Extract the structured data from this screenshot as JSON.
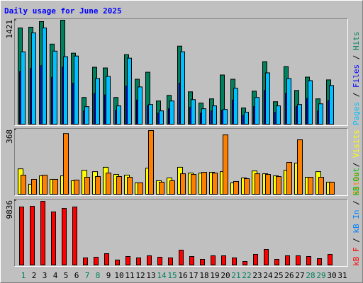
{
  "chart_data": [
    {
      "type": "bar",
      "title": "Daily usage for June 2025",
      "ylim": [
        0,
        1421
      ],
      "series": [
        {
          "name": "Hits",
          "color": "#00805c",
          "values": [
            1315,
            1325,
            1402,
            1094,
            1421,
            970,
            365,
            778,
            768,
            365,
            950,
            614,
            710,
            317,
            394,
            1066,
            442,
            288,
            346,
            672,
            614,
            221,
            451,
            854,
            307,
            787,
            461,
            643,
            346,
            605,
            null
          ]
        },
        {
          "name": "Files",
          "color": "#0000ff",
          "values": [
            720,
            760,
            800,
            640,
            780,
            560,
            180,
            420,
            400,
            190,
            520,
            330,
            250,
            150,
            210,
            560,
            230,
            150,
            180,
            190,
            330,
            120,
            240,
            460,
            160,
            420,
            240,
            350,
            180,
            320,
            null
          ]
        },
        {
          "name": "Pages",
          "color": "#00c0ff",
          "values": [
            989,
            1248,
            1315,
            998,
            922,
            931,
            240,
            624,
            653,
            250,
            902,
            509,
            269,
            182,
            317,
            989,
            336,
            211,
            250,
            202,
            490,
            163,
            365,
            701,
            250,
            624,
            269,
            595,
            278,
            528,
            null
          ]
        }
      ]
    },
    {
      "type": "bar",
      "ylim": [
        0,
        368
      ],
      "series": [
        {
          "name": "Visits",
          "color": "#ffff00",
          "values": [
            145,
            57,
            105,
            85,
            105,
            77,
            137,
            129,
            154,
            113,
            109,
            65,
            149,
            77,
            93,
            154,
            121,
            121,
            125,
            129,
            65,
            93,
            133,
            117,
            105,
            137,
            178,
            97,
            129,
            69,
            null
          ]
        },
        {
          "name": "Sites",
          "color": "#ff8000",
          "values": [
            109,
            85,
            109,
            85,
            347,
            81,
            97,
            101,
            121,
            101,
            97,
            65,
            364,
            69,
            77,
            117,
            113,
            125,
            121,
            339,
            73,
            89,
            117,
            113,
            101,
            182,
            311,
            97,
            97,
            69,
            null
          ]
        }
      ]
    },
    {
      "type": "bar",
      "ylim": [
        0,
        9836
      ],
      "categories": [
        "1",
        "2",
        "3",
        "4",
        "5",
        "6",
        "7",
        "8",
        "9",
        "10",
        "11",
        "12",
        "13",
        "14",
        "15",
        "16",
        "17",
        "18",
        "19",
        "20",
        "21",
        "22",
        "23",
        "24",
        "25",
        "26",
        "27",
        "28",
        "29",
        "30",
        "31"
      ],
      "weekend_days": [
        "1",
        "7",
        "8",
        "14",
        "15",
        "21",
        "22",
        "28",
        "29"
      ],
      "weekend_color": "#00805c",
      "series": [
        {
          "name": "kB F",
          "color": "#ff0000",
          "values": [
            8856,
            8964,
            9720,
            8100,
            8640,
            8856,
            1080,
            1188,
            1728,
            756,
            1296,
            1080,
            1404,
            1188,
            1080,
            2268,
            1296,
            864,
            1404,
            1404,
            1080,
            540,
            1620,
            2376,
            864,
            1404,
            1404,
            1296,
            972,
            1620,
            null
          ]
        }
      ],
      "extra_legend": [
        {
          "name": "kB In",
          "color": "#0080ff"
        },
        {
          "name": "kB Out",
          "color": "#00c000"
        }
      ]
    }
  ]
}
